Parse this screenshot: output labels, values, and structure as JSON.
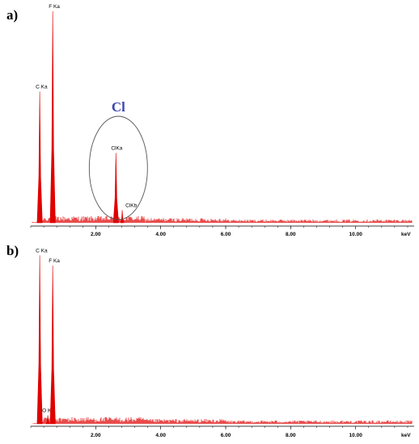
{
  "chart_data": [
    {
      "type": "line",
      "panel_label": "a)",
      "xlabel": "keV",
      "xlim": [
        0.0,
        11.8
      ],
      "x_ticks": [
        "2.00",
        "4.00",
        "6.00",
        "8.00",
        "10.00"
      ],
      "peaks": [
        {
          "label": "C Ka",
          "energy": 0.277,
          "intensity": 0.62
        },
        {
          "label": "F Ka",
          "energy": 0.677,
          "intensity": 1.0
        },
        {
          "label": "ClKa",
          "energy": 2.622,
          "intensity": 0.33
        },
        {
          "label": "ClKb",
          "energy": 2.816,
          "intensity": 0.06
        }
      ],
      "annotation": {
        "text": "Cl",
        "color": "#3b46b0",
        "encircles": "ClKa"
      },
      "color": "#e00000"
    },
    {
      "type": "line",
      "panel_label": "b)",
      "xlabel": "keV",
      "xlim": [
        0.0,
        11.8
      ],
      "x_ticks": [
        "2.00",
        "4.00",
        "6.00",
        "8.00",
        "10.00"
      ],
      "peaks": [
        {
          "label": "C Ka",
          "energy": 0.277,
          "intensity": 0.98
        },
        {
          "label": "O Ka",
          "energy": 0.525,
          "intensity": 0.05
        },
        {
          "label": "F Ka",
          "energy": 0.677,
          "intensity": 0.92
        }
      ],
      "color": "#e00000"
    }
  ]
}
